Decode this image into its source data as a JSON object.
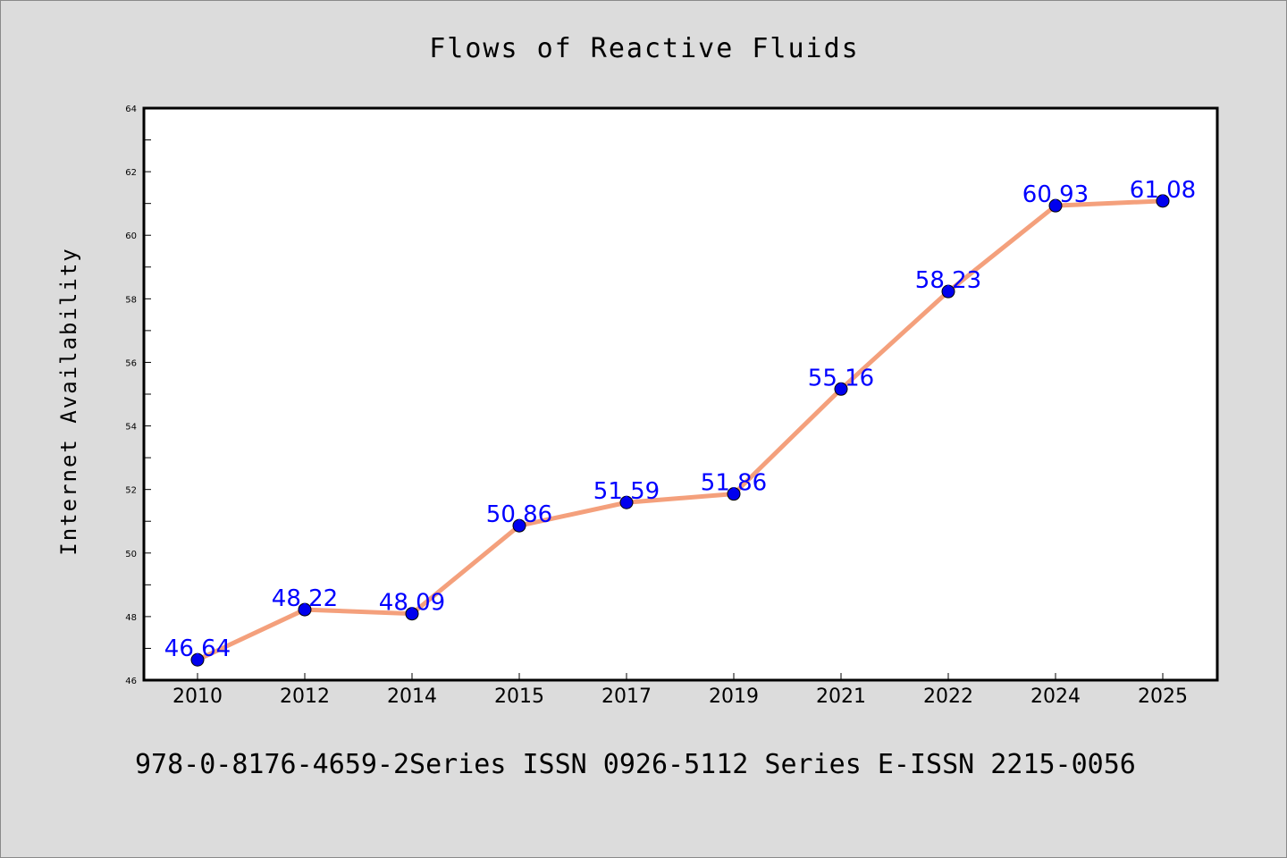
{
  "chart_data": {
    "type": "line",
    "title": "Flows of Reactive Fluids",
    "xlabel": "",
    "ylabel": "Internet Availability",
    "categories": [
      "2010",
      "2012",
      "2014",
      "2015",
      "2017",
      "2019",
      "2021",
      "2022",
      "2024",
      "2025"
    ],
    "values": [
      46.64,
      48.22,
      48.09,
      50.86,
      51.59,
      51.86,
      55.16,
      58.23,
      60.93,
      61.08
    ],
    "data_labels": [
      "46.64",
      "48.22",
      "48.09",
      "50.86",
      "51.59",
      "51.86",
      "55.16",
      "58.23",
      "60.93",
      "61.08"
    ],
    "ylim": [
      46,
      64
    ],
    "yticks": [
      46,
      48,
      50,
      52,
      54,
      56,
      58,
      60,
      62,
      64
    ],
    "grid": false,
    "legend": "none",
    "footer": "978-0-8176-4659-2Series ISSN 0926-5112 Series E-ISSN 2215-0056",
    "colors": {
      "background": "#dcdcdc",
      "plot_background": "#ffffff",
      "line": "#f4a07c",
      "marker": "#0000ee",
      "data_label": "#0000ff",
      "axis": "#000000"
    }
  }
}
